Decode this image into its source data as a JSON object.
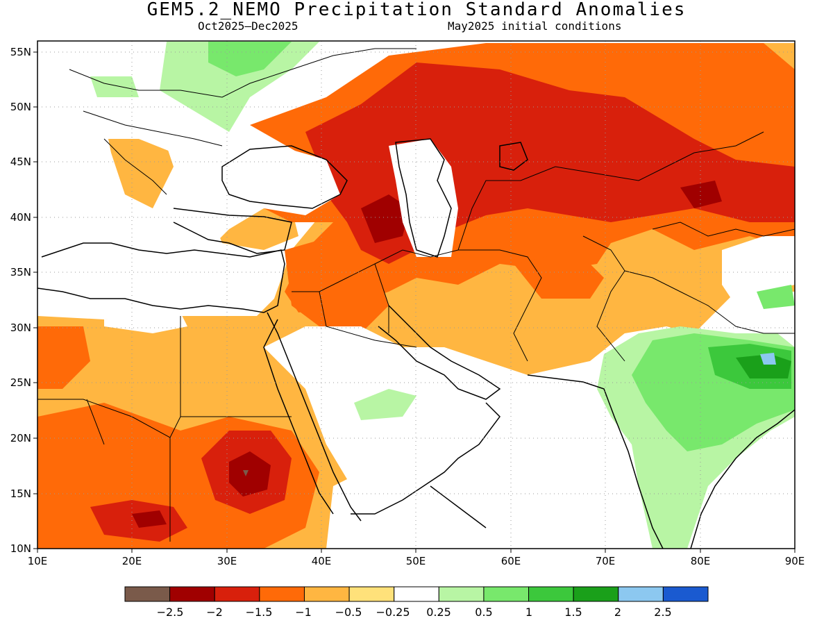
{
  "title": "GEM5.2_NEMO Precipitation Standard Anomalies",
  "subtitle_period": "Oct2025–Dec2025",
  "subtitle_init": "May2025 initial conditions",
  "map": {
    "projection": "lat-lon",
    "lon_range": [
      10,
      90
    ],
    "lat_range": [
      10,
      56
    ],
    "gridlines": "dotted",
    "lon_ticks": [
      "10E",
      "20E",
      "30E",
      "40E",
      "50E",
      "60E",
      "70E",
      "80E",
      "90E"
    ],
    "lat_ticks": [
      "10N",
      "15N",
      "20N",
      "25N",
      "30N",
      "35N",
      "40N",
      "45N",
      "50N",
      "55N"
    ]
  },
  "colorbar": {
    "labels": [
      "−2.5",
      "−2",
      "−1.5",
      "−1",
      "−0.5",
      "−0.25",
      "0.25",
      "0.5",
      "1",
      "1.5",
      "2",
      "2.5"
    ],
    "colors": [
      "#7a5a4a",
      "#a00000",
      "#d8200c",
      "#ff6a08",
      "#ffb641",
      "#ffe17a",
      "#ffffff",
      "#b8f5a4",
      "#78e86c",
      "#3cc83c",
      "#1aa01a",
      "#8cc8f0",
      "#1a5ad0"
    ]
  },
  "anomaly_regions": [
    {
      "name": "central-asia-dry",
      "level": "-1.5"
    },
    {
      "name": "caucasus-dry",
      "level": "-2"
    },
    {
      "name": "sudan-dry-core",
      "level": "-2.5"
    },
    {
      "name": "india-wet",
      "level": "0.5"
    },
    {
      "name": "bangladesh-wet",
      "level": "1.5"
    },
    {
      "name": "eastern-europe-wet",
      "level": "0.5"
    }
  ]
}
